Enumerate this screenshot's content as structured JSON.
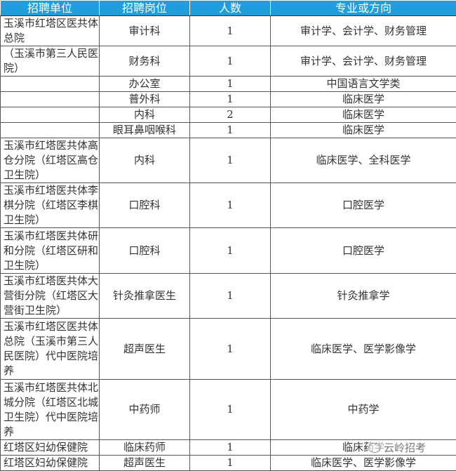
{
  "headers": [
    "招聘单位",
    "招聘岗位",
    "人数",
    "专业或方向"
  ],
  "rows": [
    {
      "unit": "玉溪市红塔区医共体总院",
      "post": "审计科",
      "count": "1",
      "major": "审计学、会计学、财务管理",
      "h": 43
    },
    {
      "unit": "（玉溪市第三人民医院）",
      "post": "财务科",
      "count": "1",
      "major": "审计学、会计学、财务管理",
      "h": 43
    },
    {
      "unit": "",
      "post": "办公室",
      "count": "1",
      "major": "中国语言文学类",
      "h": 22
    },
    {
      "unit": "",
      "post": "普外科",
      "count": "1",
      "major": "临床医学",
      "h": 21
    },
    {
      "unit": "",
      "post": "内科",
      "count": "2",
      "major": "临床医学",
      "h": 22
    },
    {
      "unit": "",
      "post": "眼耳鼻咽喉科",
      "count": "1",
      "major": "临床医学",
      "h": 22
    },
    {
      "unit": "玉溪市红塔医共体高仓分院（红塔区高仓卫生院）",
      "post": "内科",
      "count": "1",
      "major": "临床医学、全科医学",
      "h": 64
    },
    {
      "unit": "玉溪市红塔医共体李棋分院（红塔区李棋卫生院）",
      "post": "口腔科",
      "count": "1",
      "major": "口腔医学",
      "h": 64
    },
    {
      "unit": "玉溪市红塔医共体研和分院（红塔区研和卫生院）",
      "post": "口腔科",
      "count": "1",
      "major": "口腔医学",
      "h": 65
    },
    {
      "unit": "玉溪市红塔医共体大营街分院（红塔区大营街卫生院）",
      "post": "针灸推拿医生",
      "count": "1",
      "major": "针灸推拿学",
      "h": 64
    },
    {
      "unit": "玉溪市红塔区医共体总院（玉溪市第三人民医院）代中医院培养",
      "post": "超声医生",
      "count": "1",
      "major": "临床医学、医学影像学",
      "h": 87
    },
    {
      "unit": "玉溪市红塔医共体北城分院（红塔区北城卫生院）代中医院培养",
      "post": "中药师",
      "count": "1",
      "major": "中药学",
      "h": 86
    },
    {
      "unit": "红塔区妇幼保健院",
      "post": "临床药师",
      "count": "1",
      "major": "临床药学",
      "h": 21
    },
    {
      "unit": "红塔区妇幼保健院",
      "post": "超声医生",
      "count": "1",
      "major": "临床医学、医学影像学",
      "h": 21
    }
  ],
  "watermark": "云岭招考",
  "colors": {
    "header_bg": "#1e9fdc"
  }
}
